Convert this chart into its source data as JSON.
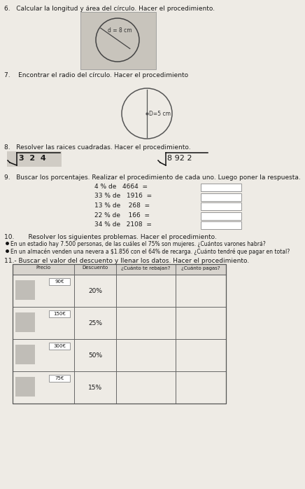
{
  "bg_color": "#eeebe5",
  "title6": "6.   Calcular la longitud y área del círculo. Hacer el procedimiento.",
  "title7": "7.    Encontrar el radio del círculo. Hacer el procedimiento",
  "title8": "8.   Resolver las raices cuadradas. Hacer el procedimiento.",
  "title9": "9.   Buscar los porcentajes. Realizar el procedimiento de cada uno. Luego poner la respuesta.",
  "title10": "10.       Resolver los siguientes problemas. Hacer el procedimiento.",
  "title11": "11.- Buscar el valor del descuento y llenar los datos. Hacer el procedimiento.",
  "bullet1": "En un estadio hay 7.500 personas, de las cuáles el 75% son mujeres. ¿Cuántos varones habrá?",
  "bullet2": "En un almacén venden una nevera a $1.856 con el 64% de recarga. ¿Cuánto tendré que pagar en total?",
  "circle1_label": "d = 8 cm",
  "circle2_label": "D=5 cm",
  "sqrt1_text": "3  2  4",
  "sqrt2_text": "8 92 2",
  "percentages": [
    {
      "pct": "4",
      "num": "4664"
    },
    {
      "pct": "33",
      "num": "1916"
    },
    {
      "pct": "13",
      "num": " 268"
    },
    {
      "pct": "22",
      "num": " 166"
    },
    {
      "pct": "34",
      "num": "2108"
    }
  ],
  "table_headers": [
    "Precio",
    "Descuento",
    "¿Cuánto te rebajan?",
    "¿Cuánto pagas?"
  ],
  "table_rows": [
    {
      "price": "90€",
      "discount": "20%"
    },
    {
      "price": "150€",
      "discount": "25%"
    },
    {
      "price": "300€",
      "discount": "50%"
    },
    {
      "price": "75€",
      "discount": "15%"
    }
  ]
}
